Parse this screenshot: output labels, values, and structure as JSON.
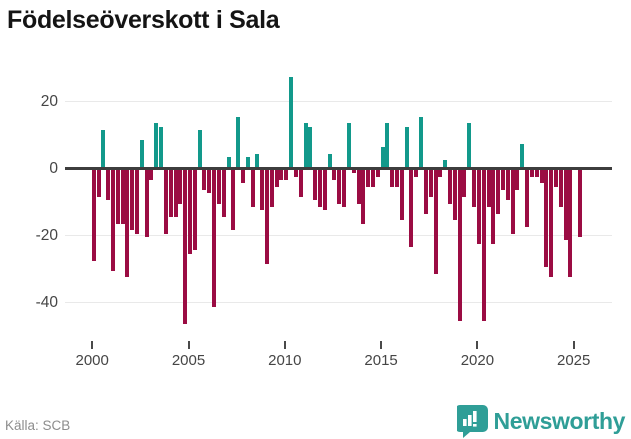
{
  "title": "Födelseöverskott i Sala",
  "footer": {
    "source": "Källa: SCB",
    "brand": "Newsworthy"
  },
  "colors": {
    "positive": "#12998b",
    "negative": "#9b0c43",
    "zero_axis": "#3d3d3d",
    "grid": "#e9e9e9",
    "brand": "#2f9e97",
    "title_text": "#141414",
    "axis_text": "#454545",
    "source_text": "#8d8d8d"
  },
  "chart_data": {
    "type": "bar",
    "title": "Födelseöverskott i Sala",
    "frequency": "quarterly",
    "start_year": 2000,
    "start_quarter": 1,
    "ylim": [
      -48,
      30
    ],
    "grid": true,
    "y_ticks": [
      {
        "label": "20",
        "value": 20
      },
      {
        "label": "0",
        "value": 0
      },
      {
        "label": "-20",
        "value": -20
      },
      {
        "label": "-40",
        "value": -40
      }
    ],
    "x_ticks": [
      {
        "label": "2000",
        "year_offset": 0
      },
      {
        "label": "2005",
        "year_offset": 5
      },
      {
        "label": "2010",
        "year_offset": 10
      },
      {
        "label": "2015",
        "year_offset": 15
      },
      {
        "label": "2020",
        "year_offset": 20
      },
      {
        "label": "2025",
        "year_offset": 25
      }
    ],
    "values": [
      -27,
      -8,
      11,
      -9,
      -30,
      -16,
      -16,
      -32,
      -18,
      -19,
      8,
      -20,
      -3,
      13,
      12,
      -19,
      -14,
      -14,
      -10,
      -46,
      -25,
      -24,
      11,
      -6,
      -7,
      -41,
      -10,
      -14,
      3,
      -18,
      15,
      -4,
      3,
      -11,
      4,
      -12,
      -28,
      -11,
      -5,
      -3,
      -3,
      27,
      -2,
      -8,
      13,
      12,
      -9,
      -11,
      -12,
      4,
      -3,
      -10,
      -11,
      13,
      -1,
      -10,
      -16,
      -5,
      -5,
      -2,
      6,
      13,
      -5,
      -5,
      -15,
      12,
      -23,
      -2,
      15,
      -13,
      -8,
      -31,
      -2,
      2,
      -10,
      -15,
      -45,
      -8,
      13,
      -11,
      -22,
      -45,
      -11,
      -22,
      -13,
      -6,
      -9,
      -19,
      -6,
      7,
      -17,
      -2,
      -2,
      -4,
      -29,
      -32,
      -5,
      -11,
      -21,
      -32,
      0,
      -20
    ]
  }
}
